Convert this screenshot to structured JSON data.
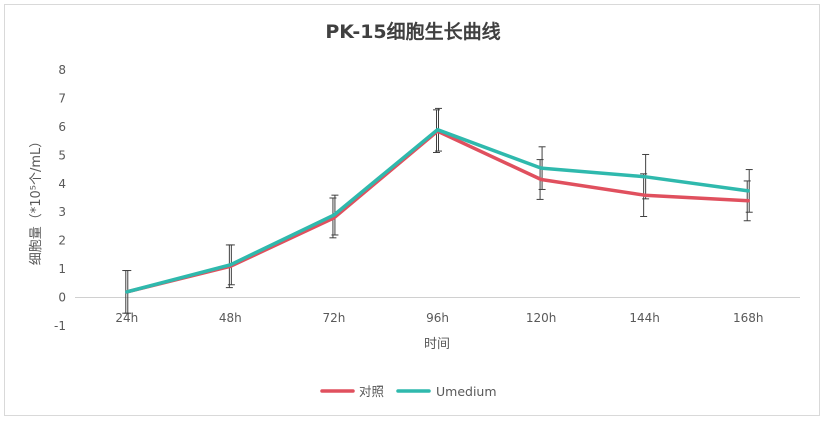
{
  "chart_data": {
    "type": "line",
    "title": "PK-15细胞生长曲线",
    "xlabel": "时间",
    "ylabel": "细胞量（*10⁵个/mL）",
    "categories": [
      "24h",
      "48h",
      "72h",
      "96h",
      "120h",
      "144h",
      "168h"
    ],
    "ylim": [
      -1,
      8
    ],
    "yticks": [
      8,
      7,
      6,
      5,
      4,
      3,
      2,
      1,
      0,
      -1
    ],
    "grid": false,
    "legend": "bottom",
    "series": [
      {
        "name": "对照",
        "color": "#e0505e",
        "values": [
          0.2,
          1.1,
          2.8,
          5.85,
          4.15,
          3.6,
          3.4
        ],
        "error": [
          0.75,
          0.75,
          0.7,
          0.75,
          0.7,
          0.75,
          0.7
        ]
      },
      {
        "name": "Umedium",
        "color": "#2fb9ad",
        "values": [
          0.2,
          1.15,
          2.9,
          5.9,
          4.55,
          4.25,
          3.75
        ],
        "error": [
          0.75,
          0.7,
          0.7,
          0.75,
          0.75,
          0.78,
          0.75
        ]
      }
    ]
  }
}
